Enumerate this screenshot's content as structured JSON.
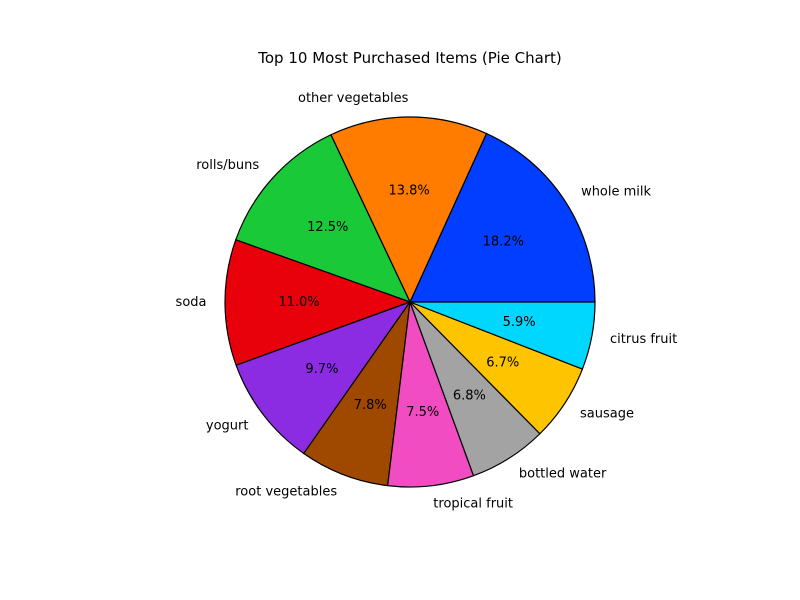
{
  "chart_data": {
    "type": "pie",
    "title": "Top 10 Most Purchased Items (Pie Chart)",
    "start_angle_deg": 0,
    "direction": "counterclockwise",
    "slices": [
      {
        "label": "whole milk",
        "value": 18.2,
        "pct_label": "18.2%",
        "color": "#023eff"
      },
      {
        "label": "other vegetables",
        "value": 13.8,
        "pct_label": "13.8%",
        "color": "#ff7c00"
      },
      {
        "label": "rolls/buns",
        "value": 12.5,
        "pct_label": "12.5%",
        "color": "#1ac938"
      },
      {
        "label": "soda",
        "value": 11.0,
        "pct_label": "11.0%",
        "color": "#e8000b"
      },
      {
        "label": "yogurt",
        "value": 9.7,
        "pct_label": "9.7%",
        "color": "#8b2be2"
      },
      {
        "label": "root vegetables",
        "value": 7.8,
        "pct_label": "7.8%",
        "color": "#9f4800"
      },
      {
        "label": "tropical fruit",
        "value": 7.5,
        "pct_label": "7.5%",
        "color": "#f14cc1"
      },
      {
        "label": "bottled water",
        "value": 6.8,
        "pct_label": "6.8%",
        "color": "#a3a3a3"
      },
      {
        "label": "sausage",
        "value": 6.7,
        "pct_label": "6.7%",
        "color": "#ffc400"
      },
      {
        "label": "citrus fruit",
        "value": 5.9,
        "pct_label": "5.9%",
        "color": "#00d7ff"
      }
    ]
  }
}
